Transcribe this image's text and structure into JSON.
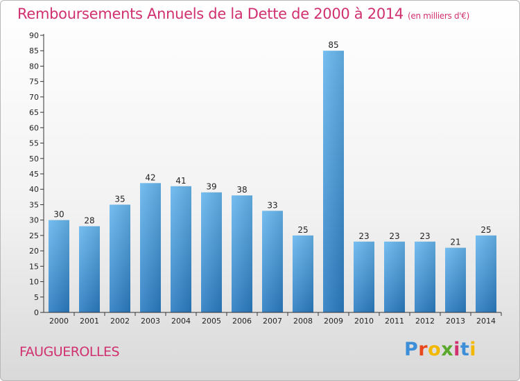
{
  "title": "Remboursements Annuels de la Dette de 2000 à 2014",
  "unit": "(en milliers d'€)",
  "commune": "FAUGUEROLLES",
  "logo": {
    "letters": [
      "P",
      "r",
      "o",
      "x",
      "i",
      "t",
      "i"
    ],
    "colors": [
      "#3c8ed8",
      "#e8481c",
      "#f2b800",
      "#5aa82c",
      "#d0306f",
      "#3c8ed8",
      "#f2b800"
    ]
  },
  "colors": {
    "bar_light": "#67b7ee",
    "bar_dark": "#2b7cc2",
    "title": "#d0306f"
  },
  "chart_data": {
    "type": "bar",
    "title": "Remboursements Annuels de la Dette de 2000 à 2014",
    "ylabel": "",
    "xlabel": "",
    "ylim": [
      0,
      90
    ],
    "yticks": [
      0,
      5,
      10,
      15,
      20,
      25,
      30,
      35,
      40,
      45,
      50,
      55,
      60,
      65,
      70,
      75,
      80,
      85,
      90
    ],
    "grid": false,
    "categories": [
      "2000",
      "2001",
      "2002",
      "2003",
      "2004",
      "2005",
      "2006",
      "2007",
      "2008",
      "2009",
      "2010",
      "2011",
      "2012",
      "2013",
      "2014"
    ],
    "values": [
      30,
      28,
      35,
      42,
      41,
      39,
      38,
      33,
      25,
      85,
      23,
      23,
      23,
      21,
      25
    ]
  }
}
